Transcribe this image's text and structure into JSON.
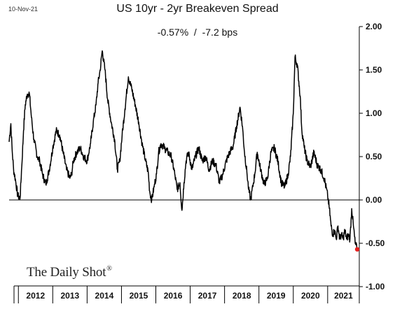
{
  "header": {
    "date": "10-Nov-21",
    "title": "US 10yr - 2yr Breakeven Spread",
    "subtitle": "-0.57%  /  -7.2 bps"
  },
  "brand": {
    "name": "The Daily Shot",
    "mark": "®"
  },
  "colors": {
    "line": "#000000",
    "last_point": "#e8201f",
    "zero_line": "#000000"
  },
  "chart_data": {
    "type": "line",
    "title": "US 10yr - 2yr Breakeven Spread",
    "xlabel": "",
    "ylabel": "",
    "ylim": [
      -1.0,
      2.0
    ],
    "yticks": [
      2.0,
      1.5,
      1.0,
      0.5,
      0.0,
      -0.5,
      -1.0
    ],
    "ytick_labels": [
      "2.00",
      "1.50",
      "1.00",
      "0.50",
      "0.00",
      "-0.50",
      "-1.00"
    ],
    "xlim": [
      2011.73,
      2021.9
    ],
    "x_categories": [
      "2012",
      "2013",
      "2014",
      "2015",
      "2016",
      "2017",
      "2018",
      "2019",
      "2020",
      "2021"
    ],
    "grid": false,
    "y_axis_side": "right",
    "reference_line": 0.0,
    "last_point": {
      "x": 2021.86,
      "y": -0.57
    },
    "series": [
      {
        "x": [
          2011.73,
          2011.78,
          2011.82,
          2011.86,
          2011.92,
          2011.98,
          2012.05,
          2012.1,
          2012.15,
          2012.2,
          2012.26,
          2012.32,
          2012.38,
          2012.45,
          2012.55,
          2012.62,
          2012.7,
          2012.8,
          2012.9,
          2013.0,
          2013.1,
          2013.2,
          2013.3,
          2013.4,
          2013.5,
          2013.55,
          2013.6,
          2013.7,
          2013.8,
          2013.9,
          2014.0,
          2014.1,
          2014.18,
          2014.26,
          2014.32,
          2014.38,
          2014.44,
          2014.52,
          2014.6,
          2014.7,
          2014.8,
          2014.88,
          2014.95,
          2015.02,
          2015.1,
          2015.2,
          2015.3,
          2015.4,
          2015.5,
          2015.6,
          2015.7,
          2015.78,
          2015.82,
          2015.88,
          2015.95,
          2016.02,
          2016.08,
          2016.15,
          2016.25,
          2016.35,
          2016.45,
          2016.55,
          2016.62,
          2016.7,
          2016.76,
          2016.82,
          2016.88,
          2016.95,
          2017.05,
          2017.15,
          2017.25,
          2017.35,
          2017.45,
          2017.55,
          2017.65,
          2017.75,
          2017.85,
          2017.95,
          2018.05,
          2018.15,
          2018.25,
          2018.35,
          2018.45,
          2018.52,
          2018.58,
          2018.65,
          2018.7,
          2018.76,
          2018.82,
          2018.88,
          2018.95,
          2019.05,
          2019.15,
          2019.25,
          2019.35,
          2019.45,
          2019.55,
          2019.65,
          2019.75,
          2019.85,
          2019.92,
          2020.0,
          2020.05,
          2020.12,
          2020.2,
          2020.25,
          2020.32,
          2020.4,
          2020.5,
          2020.6,
          2020.7,
          2020.8,
          2020.9,
          2021.0,
          2021.05,
          2021.1,
          2021.15,
          2021.2,
          2021.25,
          2021.3,
          2021.35,
          2021.4,
          2021.45,
          2021.5,
          2021.55,
          2021.6,
          2021.65,
          2021.7,
          2021.75,
          2021.8,
          2021.86
        ],
        "values": [
          0.67,
          0.88,
          0.57,
          0.35,
          0.22,
          0.05,
          0.02,
          0.4,
          0.8,
          1.1,
          1.22,
          1.23,
          0.95,
          0.7,
          0.5,
          0.45,
          0.3,
          0.18,
          0.35,
          0.6,
          0.8,
          0.75,
          0.55,
          0.35,
          0.25,
          0.3,
          0.45,
          0.55,
          0.6,
          0.5,
          0.45,
          0.65,
          0.9,
          1.1,
          1.35,
          1.5,
          1.72,
          1.5,
          1.15,
          0.9,
          0.7,
          0.35,
          0.45,
          0.75,
          1.05,
          1.42,
          1.28,
          1.1,
          0.9,
          0.65,
          0.45,
          0.32,
          0.1,
          0.0,
          0.15,
          0.3,
          0.55,
          0.65,
          0.6,
          0.55,
          0.5,
          0.3,
          0.12,
          0.2,
          -0.12,
          0.2,
          0.45,
          0.55,
          0.35,
          0.5,
          0.6,
          0.45,
          0.5,
          0.35,
          0.45,
          0.4,
          0.2,
          0.3,
          0.45,
          0.55,
          0.62,
          0.85,
          1.07,
          0.85,
          0.55,
          0.32,
          0.12,
          0.0,
          0.15,
          0.3,
          0.55,
          0.35,
          0.18,
          0.25,
          0.55,
          0.6,
          0.45,
          0.2,
          0.15,
          0.3,
          0.5,
          1.0,
          1.65,
          1.55,
          1.2,
          0.8,
          0.6,
          0.45,
          0.38,
          0.55,
          0.4,
          0.35,
          0.25,
          0.05,
          -0.1,
          -0.3,
          -0.4,
          -0.35,
          -0.45,
          -0.3,
          -0.45,
          -0.4,
          -0.45,
          -0.35,
          -0.45,
          -0.4,
          -0.45,
          -0.1,
          -0.3,
          -0.5,
          -0.57
        ]
      }
    ]
  }
}
